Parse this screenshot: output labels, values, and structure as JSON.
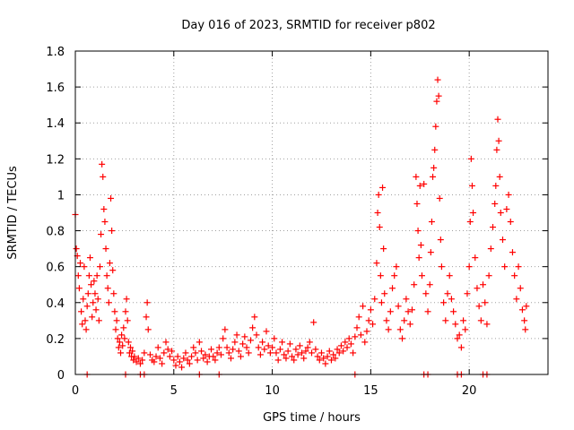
{
  "chart_data": {
    "type": "scatter",
    "title": "Day 016 of 2023, SRMTID for receiver p802",
    "xlabel": "GPS time / hours",
    "ylabel": "SRMTID / TECUs",
    "xlim": [
      0,
      24
    ],
    "ylim": [
      0,
      1.8
    ],
    "xticks": [
      0,
      5,
      10,
      15,
      20
    ],
    "xtick_labels": [
      "0",
      "5",
      "10",
      "15",
      "20"
    ],
    "yticks": [
      0,
      0.2,
      0.4,
      0.6,
      0.8,
      1.0,
      1.2,
      1.4,
      1.6,
      1.8
    ],
    "ytick_labels": [
      "0",
      "0.2",
      "0.4",
      "0.6",
      "0.8",
      "1",
      "1.2",
      "1.4",
      "1.6",
      "1.8"
    ],
    "grid": true,
    "marker": "+",
    "color": "#ff0000",
    "series": [
      {
        "name": "SRMTID",
        "points": [
          [
            0.0,
            0.89
          ],
          [
            0.05,
            0.7
          ],
          [
            0.1,
            0.66
          ],
          [
            0.15,
            0.55
          ],
          [
            0.2,
            0.48
          ],
          [
            0.25,
            0.62
          ],
          [
            0.3,
            0.35
          ],
          [
            0.35,
            0.28
          ],
          [
            0.4,
            0.42
          ],
          [
            0.45,
            0.6
          ],
          [
            0.5,
            0.3
          ],
          [
            0.55,
            0.25
          ],
          [
            0.6,
            0.38
          ],
          [
            0.65,
            0.45
          ],
          [
            0.7,
            0.55
          ],
          [
            0.75,
            0.65
          ],
          [
            0.8,
            0.5
          ],
          [
            0.85,
            0.32
          ],
          [
            0.9,
            0.4
          ],
          [
            0.95,
            0.52
          ],
          [
            1.0,
            0.45
          ],
          [
            1.05,
            0.36
          ],
          [
            1.1,
            0.55
          ],
          [
            1.15,
            0.42
          ],
          [
            1.2,
            0.3
          ],
          [
            1.25,
            0.6
          ],
          [
            1.3,
            0.78
          ],
          [
            1.35,
            1.17
          ],
          [
            1.4,
            1.1
          ],
          [
            1.45,
            0.92
          ],
          [
            1.5,
            0.85
          ],
          [
            1.55,
            0.7
          ],
          [
            1.6,
            0.55
          ],
          [
            1.65,
            0.48
          ],
          [
            1.7,
            0.4
          ],
          [
            1.75,
            0.62
          ],
          [
            1.8,
            0.98
          ],
          [
            1.85,
            0.8
          ],
          [
            1.9,
            0.58
          ],
          [
            1.95,
            0.45
          ],
          [
            2.0,
            0.35
          ],
          [
            2.05,
            0.25
          ],
          [
            2.1,
            0.3
          ],
          [
            2.15,
            0.2
          ],
          [
            2.2,
            0.15
          ],
          [
            2.25,
            0.18
          ],
          [
            2.3,
            0.12
          ],
          [
            2.35,
            0.22
          ],
          [
            2.4,
            0.16
          ],
          [
            2.45,
            0.26
          ],
          [
            2.5,
            0.2
          ],
          [
            2.55,
            0.35
          ],
          [
            2.6,
            0.42
          ],
          [
            2.65,
            0.3
          ],
          [
            2.7,
            0.18
          ],
          [
            2.75,
            0.12
          ],
          [
            2.8,
            0.15
          ],
          [
            2.85,
            0.1
          ],
          [
            2.9,
            0.13
          ],
          [
            2.95,
            0.08
          ],
          [
            3.0,
            0.1
          ],
          [
            3.1,
            0.07
          ],
          [
            3.2,
            0.09
          ],
          [
            3.3,
            0.06
          ],
          [
            3.4,
            0.08
          ],
          [
            3.5,
            0.12
          ],
          [
            3.6,
            0.32
          ],
          [
            3.65,
            0.4
          ],
          [
            3.7,
            0.25
          ],
          [
            3.8,
            0.11
          ],
          [
            3.9,
            0.08
          ],
          [
            4.0,
            0.07
          ],
          [
            4.1,
            0.1
          ],
          [
            4.2,
            0.15
          ],
          [
            4.3,
            0.09
          ],
          [
            4.4,
            0.06
          ],
          [
            4.5,
            0.12
          ],
          [
            4.6,
            0.18
          ],
          [
            4.7,
            0.14
          ],
          [
            4.8,
            0.1
          ],
          [
            4.9,
            0.13
          ],
          [
            5.0,
            0.08
          ],
          [
            5.1,
            0.05
          ],
          [
            5.2,
            0.1
          ],
          [
            5.3,
            0.07
          ],
          [
            5.4,
            0.04
          ],
          [
            5.5,
            0.09
          ],
          [
            5.6,
            0.12
          ],
          [
            5.7,
            0.08
          ],
          [
            5.8,
            0.06
          ],
          [
            5.9,
            0.1
          ],
          [
            6.0,
            0.15
          ],
          [
            6.1,
            0.12
          ],
          [
            6.2,
            0.08
          ],
          [
            6.3,
            0.18
          ],
          [
            6.4,
            0.13
          ],
          [
            6.5,
            0.09
          ],
          [
            6.6,
            0.11
          ],
          [
            6.7,
            0.07
          ],
          [
            6.8,
            0.1
          ],
          [
            6.9,
            0.14
          ],
          [
            7.0,
            0.1
          ],
          [
            7.1,
            0.08
          ],
          [
            7.2,
            0.12
          ],
          [
            7.3,
            0.15
          ],
          [
            7.4,
            0.11
          ],
          [
            7.5,
            0.2
          ],
          [
            7.6,
            0.25
          ],
          [
            7.7,
            0.15
          ],
          [
            7.8,
            0.12
          ],
          [
            7.9,
            0.09
          ],
          [
            8.0,
            0.14
          ],
          [
            8.1,
            0.18
          ],
          [
            8.2,
            0.22
          ],
          [
            8.3,
            0.13
          ],
          [
            8.4,
            0.1
          ],
          [
            8.5,
            0.17
          ],
          [
            8.6,
            0.21
          ],
          [
            8.7,
            0.15
          ],
          [
            8.8,
            0.12
          ],
          [
            8.9,
            0.19
          ],
          [
            9.0,
            0.26
          ],
          [
            9.1,
            0.32
          ],
          [
            9.2,
            0.22
          ],
          [
            9.3,
            0.15
          ],
          [
            9.4,
            0.11
          ],
          [
            9.5,
            0.18
          ],
          [
            9.6,
            0.14
          ],
          [
            9.7,
            0.24
          ],
          [
            9.8,
            0.16
          ],
          [
            9.9,
            0.12
          ],
          [
            10.0,
            0.15
          ],
          [
            10.1,
            0.2
          ],
          [
            10.2,
            0.12
          ],
          [
            10.3,
            0.08
          ],
          [
            10.4,
            0.14
          ],
          [
            10.5,
            0.18
          ],
          [
            10.6,
            0.11
          ],
          [
            10.7,
            0.09
          ],
          [
            10.8,
            0.13
          ],
          [
            10.9,
            0.17
          ],
          [
            11.0,
            0.1
          ],
          [
            11.1,
            0.08
          ],
          [
            11.2,
            0.14
          ],
          [
            11.3,
            0.11
          ],
          [
            11.4,
            0.16
          ],
          [
            11.5,
            0.12
          ],
          [
            11.6,
            0.09
          ],
          [
            11.7,
            0.13
          ],
          [
            11.8,
            0.15
          ],
          [
            11.9,
            0.18
          ],
          [
            12.0,
            0.12
          ],
          [
            12.1,
            0.29
          ],
          [
            12.2,
            0.14
          ],
          [
            12.3,
            0.1
          ],
          [
            12.4,
            0.08
          ],
          [
            12.5,
            0.12
          ],
          [
            12.6,
            0.09
          ],
          [
            12.7,
            0.06
          ],
          [
            12.8,
            0.1
          ],
          [
            12.9,
            0.13
          ],
          [
            13.0,
            0.08
          ],
          [
            13.1,
            0.11
          ],
          [
            13.2,
            0.09
          ],
          [
            13.3,
            0.14
          ],
          [
            13.4,
            0.12
          ],
          [
            13.5,
            0.16
          ],
          [
            13.6,
            0.13
          ],
          [
            13.7,
            0.18
          ],
          [
            13.8,
            0.15
          ],
          [
            13.9,
            0.2
          ],
          [
            14.0,
            0.17
          ],
          [
            14.1,
            0.12
          ],
          [
            14.2,
            0.21
          ],
          [
            14.3,
            0.26
          ],
          [
            14.4,
            0.32
          ],
          [
            14.5,
            0.22
          ],
          [
            14.6,
            0.38
          ],
          [
            14.7,
            0.18
          ],
          [
            14.8,
            0.24
          ],
          [
            14.9,
            0.3
          ],
          [
            15.0,
            0.36
          ],
          [
            15.1,
            0.28
          ],
          [
            15.2,
            0.42
          ],
          [
            15.3,
            0.62
          ],
          [
            15.35,
            0.9
          ],
          [
            15.4,
            1.0
          ],
          [
            15.45,
            0.82
          ],
          [
            15.5,
            0.55
          ],
          [
            15.55,
            0.4
          ],
          [
            15.6,
            1.04
          ],
          [
            15.65,
            0.7
          ],
          [
            15.7,
            0.45
          ],
          [
            15.8,
            0.3
          ],
          [
            15.9,
            0.25
          ],
          [
            16.0,
            0.35
          ],
          [
            16.1,
            0.48
          ],
          [
            16.2,
            0.55
          ],
          [
            16.3,
            0.6
          ],
          [
            16.4,
            0.38
          ],
          [
            16.5,
            0.25
          ],
          [
            16.6,
            0.2
          ],
          [
            16.7,
            0.3
          ],
          [
            16.8,
            0.42
          ],
          [
            16.9,
            0.35
          ],
          [
            17.0,
            0.28
          ],
          [
            17.1,
            0.36
          ],
          [
            17.2,
            0.5
          ],
          [
            17.3,
            1.1
          ],
          [
            17.35,
            0.95
          ],
          [
            17.4,
            0.8
          ],
          [
            17.45,
            0.65
          ],
          [
            17.5,
            1.05
          ],
          [
            17.55,
            0.72
          ],
          [
            17.6,
            0.55
          ],
          [
            17.7,
            1.06
          ],
          [
            17.8,
            0.45
          ],
          [
            17.9,
            0.35
          ],
          [
            18.0,
            0.5
          ],
          [
            18.05,
            0.68
          ],
          [
            18.1,
            0.85
          ],
          [
            18.15,
            1.1
          ],
          [
            18.2,
            1.15
          ],
          [
            18.25,
            1.25
          ],
          [
            18.3,
            1.38
          ],
          [
            18.35,
            1.52
          ],
          [
            18.4,
            1.64
          ],
          [
            18.45,
            1.55
          ],
          [
            18.5,
            0.98
          ],
          [
            18.55,
            0.75
          ],
          [
            18.6,
            0.6
          ],
          [
            18.7,
            0.4
          ],
          [
            18.8,
            0.3
          ],
          [
            18.9,
            0.45
          ],
          [
            19.0,
            0.55
          ],
          [
            19.1,
            0.42
          ],
          [
            19.2,
            0.35
          ],
          [
            19.3,
            0.28
          ],
          [
            19.4,
            0.2
          ],
          [
            19.5,
            0.22
          ],
          [
            19.6,
            0.15
          ],
          [
            19.7,
            0.3
          ],
          [
            19.8,
            0.25
          ],
          [
            19.9,
            0.45
          ],
          [
            20.0,
            0.6
          ],
          [
            20.05,
            0.85
          ],
          [
            20.1,
            1.2
          ],
          [
            20.15,
            1.05
          ],
          [
            20.2,
            0.9
          ],
          [
            20.3,
            0.65
          ],
          [
            20.4,
            0.48
          ],
          [
            20.5,
            0.38
          ],
          [
            20.6,
            0.3
          ],
          [
            20.7,
            0.5
          ],
          [
            20.8,
            0.4
          ],
          [
            20.9,
            0.28
          ],
          [
            21.0,
            0.55
          ],
          [
            21.1,
            0.7
          ],
          [
            21.2,
            0.82
          ],
          [
            21.3,
            0.95
          ],
          [
            21.35,
            1.05
          ],
          [
            21.4,
            1.25
          ],
          [
            21.45,
            1.42
          ],
          [
            21.5,
            1.3
          ],
          [
            21.55,
            1.1
          ],
          [
            21.6,
            0.9
          ],
          [
            21.7,
            0.75
          ],
          [
            21.8,
            0.6
          ],
          [
            21.9,
            0.92
          ],
          [
            22.0,
            1.0
          ],
          [
            22.1,
            0.85
          ],
          [
            22.2,
            0.68
          ],
          [
            22.3,
            0.55
          ],
          [
            22.4,
            0.42
          ],
          [
            22.5,
            0.6
          ],
          [
            22.6,
            0.48
          ],
          [
            22.7,
            0.36
          ],
          [
            22.8,
            0.3
          ],
          [
            22.85,
            0.25
          ],
          [
            22.9,
            0.38
          ],
          [
            0.6,
            0.0
          ],
          [
            2.55,
            0.0
          ],
          [
            3.3,
            0.0
          ],
          [
            3.5,
            0.0
          ],
          [
            6.3,
            0.0
          ],
          [
            7.3,
            0.0
          ],
          [
            14.2,
            0.0
          ],
          [
            17.7,
            0.0
          ],
          [
            17.9,
            0.0
          ],
          [
            19.4,
            0.0
          ],
          [
            19.6,
            0.0
          ],
          [
            20.7,
            0.0
          ],
          [
            20.9,
            0.0
          ]
        ]
      }
    ]
  }
}
